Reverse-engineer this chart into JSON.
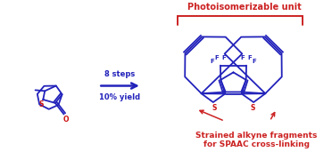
{
  "blue": "#2222BB",
  "red": "#CC1111",
  "dark_red": "#CC2222",
  "bg": "#FFFFFF",
  "arrow_text1": "8 steps",
  "arrow_text2": "10% yield",
  "label_top": "Photoisomerizable unit",
  "label_bottom1": "Strained alkyne fragments",
  "label_bottom2": "for SPAAC cross-linking"
}
